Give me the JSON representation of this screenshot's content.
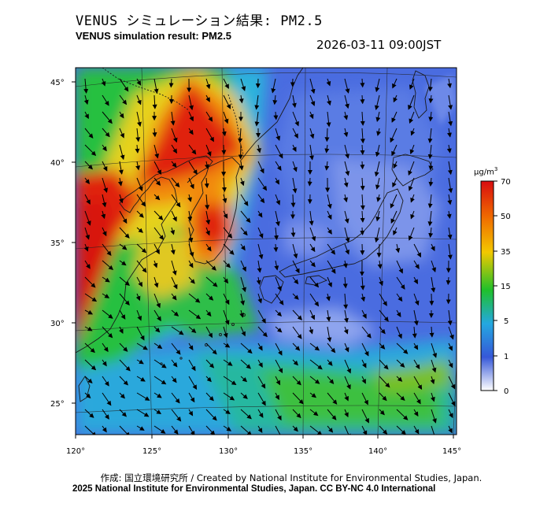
{
  "title_ja": "VENUS シミュレーション結果: PM2.5",
  "title_en": "VENUS simulation result: PM2.5",
  "timestamp": "2026-03-11 09:00JST",
  "credit_line1": "作成: 国立環境研究所 / Created by National Institute for Environmental Studies, Japan.",
  "credit_line2": "2025 National Institute for Environmental Studies, Japan. CC BY-NC 4.0 International",
  "map": {
    "lon_ticks": [
      "120°",
      "125°",
      "130°",
      "135°",
      "140°",
      "145°"
    ],
    "lat_ticks": [
      "45°",
      "40°",
      "35°",
      "30°",
      "25°"
    ]
  },
  "colorbar": {
    "unit_label": "μg/m",
    "unit_sup": "3",
    "ticks": [
      "70",
      "50",
      "35",
      "15",
      "5",
      "1",
      "0"
    ],
    "colors": [
      "#dc0c0c",
      "#f07000",
      "#f2c400",
      "#1fbf2a",
      "#2aa0dd",
      "#3a66d8",
      "#ffffff"
    ]
  },
  "colors": {
    "low": "#4a6ce0",
    "lowlight": "#8aa2f0",
    "cyan": "#2ab4dc",
    "green": "#28c040",
    "yellow": "#e6d21a",
    "orange": "#f28a10",
    "red": "#e02010",
    "coast": "#1a1a1a"
  }
}
